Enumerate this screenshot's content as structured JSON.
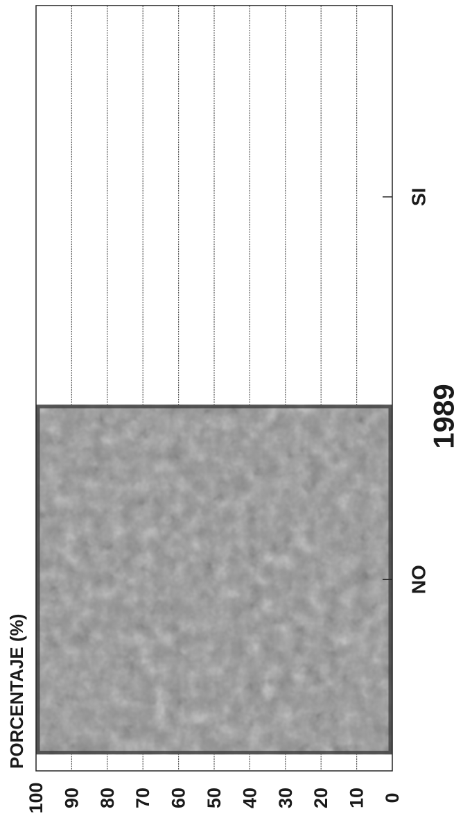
{
  "chart_data": {
    "type": "bar",
    "title": "1989",
    "ylabel": "PORCENTAJE (%)",
    "xlabel": "",
    "categories": [
      "NO",
      "SI"
    ],
    "values": [
      100,
      0
    ],
    "ylim": [
      0,
      100
    ],
    "yticks": [
      0,
      10,
      20,
      30,
      40,
      50,
      60,
      70,
      80,
      90,
      100
    ],
    "grid": true,
    "orientation": "rotated-90-clockwise",
    "colors": {
      "bar": "#8f8f8f",
      "bar_edge": "#3a3a3a",
      "grid": "#555555",
      "axis": "#222222",
      "text": "#1a1a1a"
    }
  }
}
